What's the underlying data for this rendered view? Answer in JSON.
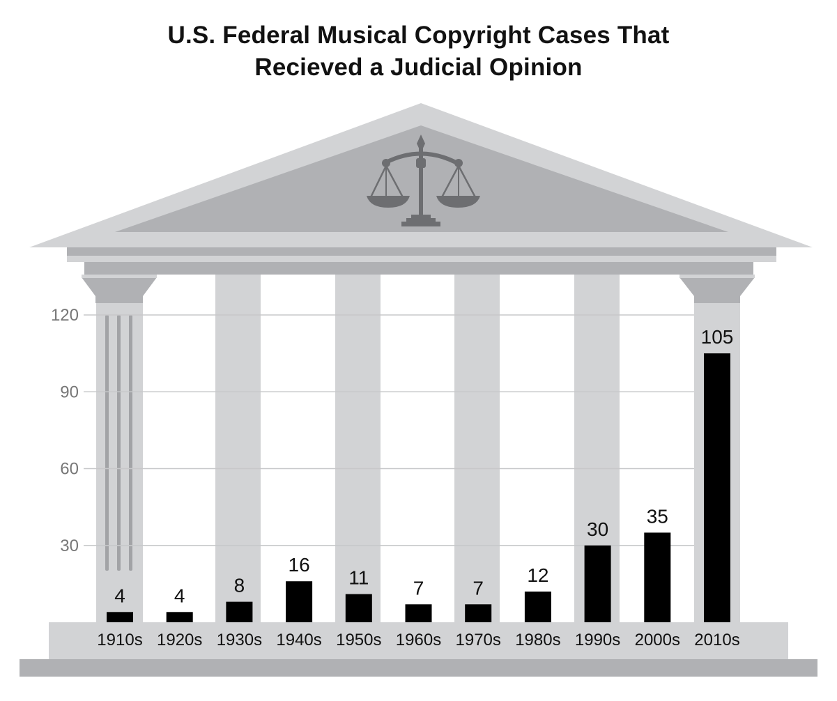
{
  "colors": {
    "background": "#ffffff",
    "building_light": "#d2d3d5",
    "building_mid": "#b0b1b4",
    "building_dark": "#a2a3a6",
    "scales": "#6d6e71",
    "bar": "#000000",
    "gridline": "#c7c8ca",
    "tick_text": "#777777"
  },
  "decoration": {
    "building_icon": "courthouse-columns-icon",
    "emblem_icon": "scales-of-justice-icon"
  },
  "chart_data": {
    "type": "bar",
    "title_lines": [
      "U.S. Federal Musical Copyright Cases That",
      "Recieved a Judicial Opinion"
    ],
    "categories": [
      "1910s",
      "1920s",
      "1930s",
      "1940s",
      "1950s",
      "1960s",
      "1970s",
      "1980s",
      "1990s",
      "2000s",
      "2010s"
    ],
    "values": [
      4,
      4,
      8,
      16,
      11,
      7,
      7,
      12,
      30,
      35,
      105
    ],
    "data_labels": [
      "4",
      "4",
      "8",
      "16",
      "11",
      "7",
      "7",
      "12",
      "30",
      "35",
      "105"
    ],
    "yticks": [
      30,
      60,
      90,
      120
    ],
    "ytick_labels": [
      "30",
      "60",
      "90",
      "120"
    ],
    "ylim": [
      0,
      120
    ],
    "xlabel": "",
    "ylabel": "",
    "grid": true,
    "legend": "none"
  }
}
